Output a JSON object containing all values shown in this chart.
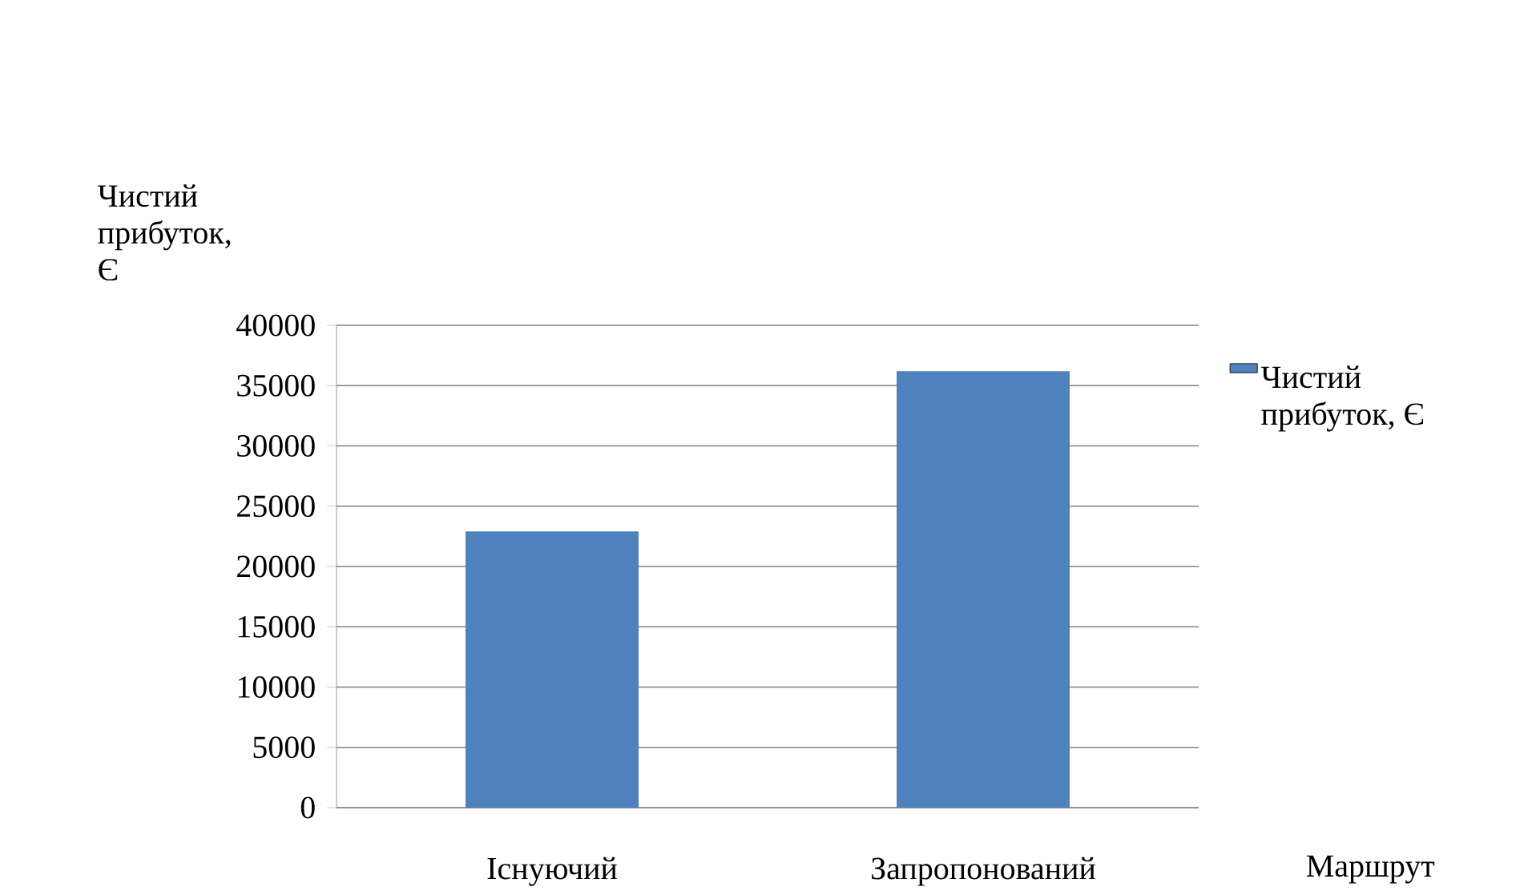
{
  "chart_data": {
    "type": "bar",
    "ylabel": "Чистий прибуток, Є",
    "xlabel": "Маршрут",
    "categories": [
      "Існуючий",
      "Запропонований"
    ],
    "series": [
      {
        "name": "Чистий прибуток, Є",
        "color": "#4f81bd",
        "values": [
          22900,
          36200
        ]
      }
    ],
    "ylim": [
      0,
      40000
    ],
    "yticks": [
      0,
      5000,
      10000,
      15000,
      20000,
      25000,
      30000,
      35000,
      40000
    ],
    "grid": "y",
    "legend": "right"
  }
}
